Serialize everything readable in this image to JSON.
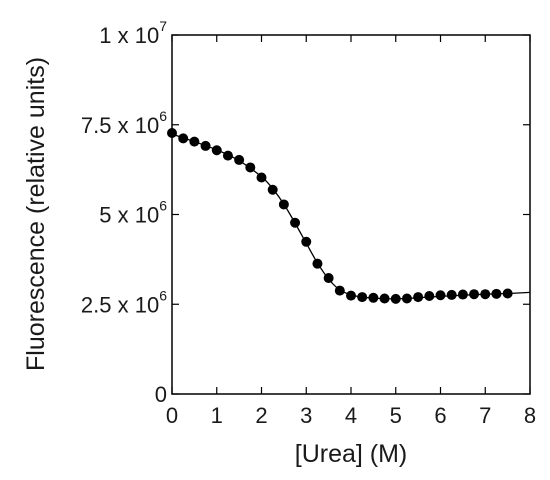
{
  "chart_data": {
    "type": "scatter",
    "title": "",
    "xlabel": "[Urea] (M)",
    "ylabel": "Fluorescence (relative units)",
    "xlim": [
      0,
      8
    ],
    "ylim": [
      0,
      10000000
    ],
    "grid": false,
    "legend": "none",
    "x_ticks": [
      {
        "value": 0,
        "label": "0"
      },
      {
        "value": 1,
        "label": "1"
      },
      {
        "value": 2,
        "label": "2"
      },
      {
        "value": 3,
        "label": "3"
      },
      {
        "value": 4,
        "label": "4"
      },
      {
        "value": 5,
        "label": "5"
      },
      {
        "value": 6,
        "label": "6"
      },
      {
        "value": 7,
        "label": "7"
      },
      {
        "value": 8,
        "label": "8"
      }
    ],
    "y_ticks": [
      {
        "value": 0,
        "mantissa": "0",
        "exp": ""
      },
      {
        "value": 2500000,
        "mantissa": "2.5 x 10",
        "exp": "6"
      },
      {
        "value": 5000000,
        "mantissa": "5 x 10",
        "exp": "6"
      },
      {
        "value": 7500000,
        "mantissa": "7.5 x 10",
        "exp": "6"
      },
      {
        "value": 10000000,
        "mantissa": "1 x 10",
        "exp": "7"
      }
    ],
    "series": [
      {
        "marker": "circle",
        "color": "#000000",
        "x": [
          0,
          0.25,
          0.5,
          0.75,
          1.0,
          1.25,
          1.5,
          1.75,
          2.0,
          2.25,
          2.5,
          2.75,
          3.0,
          3.25,
          3.5,
          3.75,
          4.0,
          4.25,
          4.5,
          4.75,
          5.0,
          5.25,
          5.5,
          5.75,
          6.0,
          6.25,
          6.5,
          6.75,
          7.0,
          7.25,
          7.5
        ],
        "y": [
          7270000,
          7120000,
          7030000,
          6910000,
          6790000,
          6640000,
          6520000,
          6310000,
          6030000,
          5690000,
          5280000,
          4770000,
          4240000,
          3630000,
          3230000,
          2880000,
          2740000,
          2700000,
          2680000,
          2660000,
          2650000,
          2660000,
          2700000,
          2730000,
          2750000,
          2760000,
          2770000,
          2780000,
          2780000,
          2790000,
          2800000
        ]
      }
    ],
    "fit_line": {
      "color": "#000000",
      "x": [
        0,
        0.5,
        1.0,
        1.5,
        2.0,
        2.25,
        2.5,
        2.75,
        3.0,
        3.25,
        3.5,
        3.75,
        4.0,
        4.25,
        4.5,
        5.0,
        5.5,
        6.0,
        6.5,
        7.0,
        7.5,
        8.0
      ],
      "y": [
        7240000,
        7030000,
        6800000,
        6500000,
        6050000,
        5720000,
        5290000,
        4760000,
        4200000,
        3650000,
        3200000,
        2900000,
        2760000,
        2700000,
        2670000,
        2650000,
        2680000,
        2720000,
        2750000,
        2780000,
        2800000,
        2830000
      ]
    }
  }
}
